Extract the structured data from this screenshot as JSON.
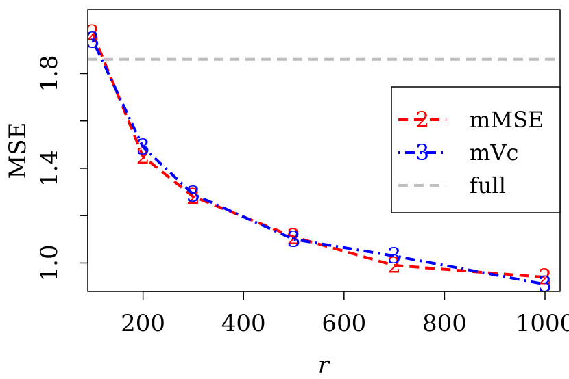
{
  "chart_data": {
    "type": "line",
    "xlabel": "r",
    "ylabel": "MSE",
    "xlim": [
      90,
      1030
    ],
    "ylim": [
      0.88,
      2.07
    ],
    "x_ticks": [
      200,
      400,
      600,
      800,
      1000
    ],
    "x_tick_labels": [
      "200",
      "400",
      "600",
      "800",
      "1000"
    ],
    "y_ticks": [
      1.0,
      1.4,
      1.8
    ],
    "y_tick_labels": [
      "1.0",
      "1.4",
      "1.8"
    ],
    "grid": false,
    "legend_position": "right",
    "series": [
      {
        "name": "mMSE",
        "marker": "2",
        "color": "#ff0000",
        "dash": "dashed",
        "x": [
          100,
          200,
          300,
          500,
          700,
          1000
        ],
        "y": [
          1.97,
          1.45,
          1.28,
          1.11,
          0.99,
          0.94
        ]
      },
      {
        "name": "mVc",
        "marker": "3",
        "color": "#0000ff",
        "dash": "dotdash",
        "x": [
          100,
          200,
          300,
          500,
          700,
          1000
        ],
        "y": [
          1.94,
          1.49,
          1.29,
          1.1,
          1.03,
          0.91
        ]
      }
    ],
    "reference_lines": [
      {
        "name": "full",
        "color": "#bebebe",
        "dash": "dashed",
        "y": 1.86
      }
    ]
  }
}
